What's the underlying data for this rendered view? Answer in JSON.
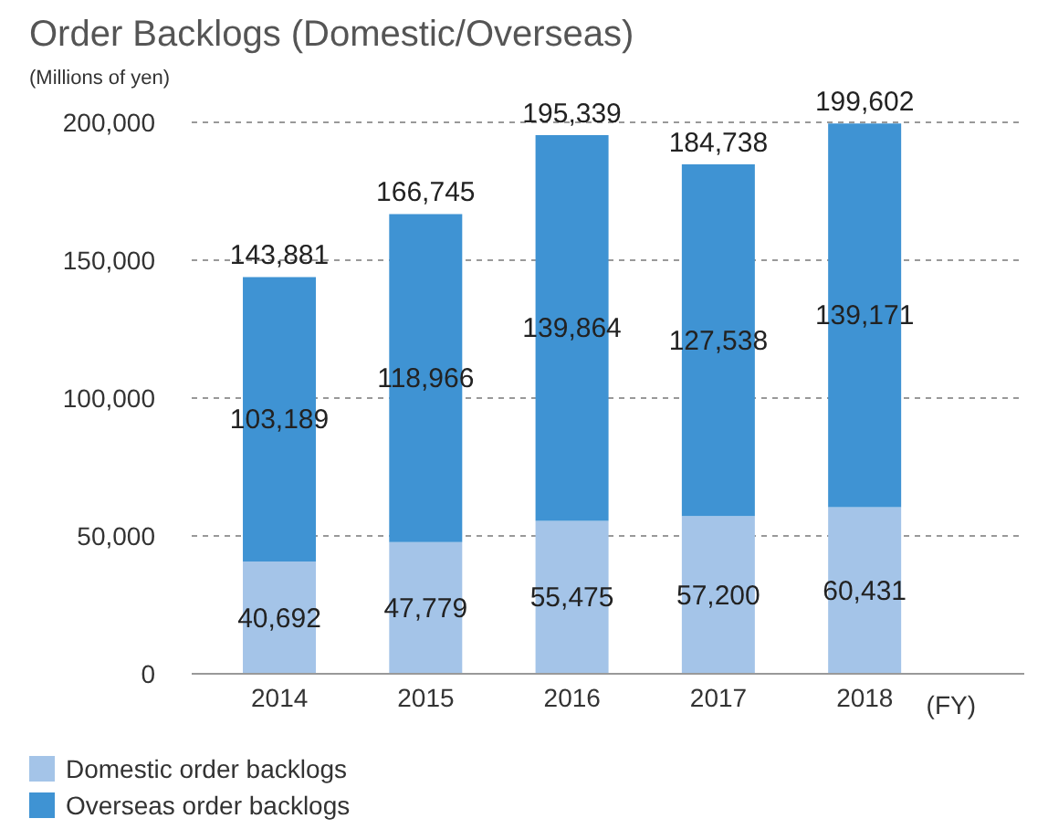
{
  "chart_data": {
    "type": "bar",
    "title": "Order Backlogs (Domestic/Overseas)",
    "subtitle": "(Millions of yen)",
    "xlabel": "(FY)",
    "categories": [
      "2014",
      "2015",
      "2016",
      "2017",
      "2018"
    ],
    "stacked": true,
    "series": [
      {
        "name": "Domestic order backlogs",
        "color": "#a4c4e8",
        "values": [
          40692,
          47779,
          55475,
          57200,
          60431
        ],
        "value_labels": [
          "40,692",
          "47,779",
          "55,475",
          "57,200",
          "60,431"
        ]
      },
      {
        "name": "Overseas order backlogs",
        "color": "#3f93d3",
        "values": [
          103189,
          118966,
          139864,
          127538,
          139171
        ],
        "value_labels": [
          "103,189",
          "118,966",
          "139,864",
          "127,538",
          "139,171"
        ]
      }
    ],
    "totals": [
      "143,881",
      "166,745",
      "195,339",
      "184,738",
      "199,602"
    ],
    "ylim": [
      0,
      200000
    ],
    "yticks": [
      {
        "value": 0,
        "label": "0"
      },
      {
        "value": 50000,
        "label": "50,000"
      },
      {
        "value": 100000,
        "label": "100,000"
      },
      {
        "value": 150000,
        "label": "150,000"
      },
      {
        "value": 200000,
        "label": "200,000"
      }
    ],
    "grid": "y",
    "legend": "bottom left"
  }
}
